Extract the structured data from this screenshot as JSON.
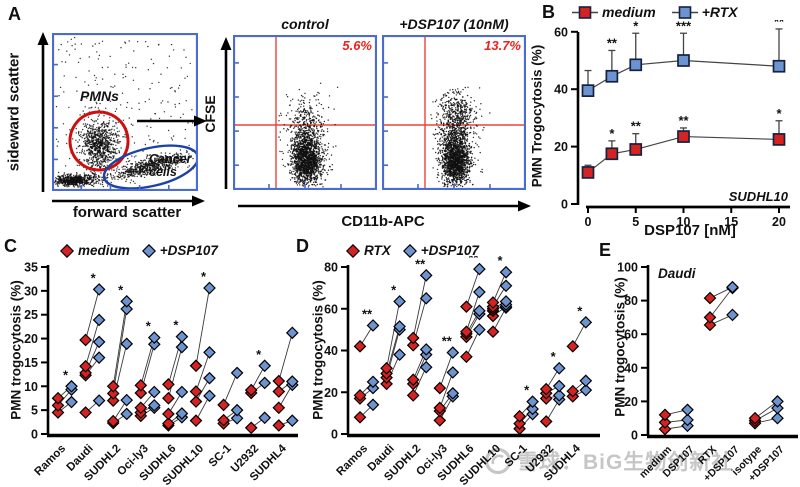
{
  "colors": {
    "red": "#d42322",
    "blue": "#6e93d1",
    "marker_stroke": "#15223f",
    "frame_blue": "#4a6bd0",
    "gate_red": "#cc1010",
    "gate_blue": "#1c41a8",
    "crosshair_red": "#e8453a",
    "flow_pct": "#e8231d",
    "line": "#444444",
    "watermark": "#c6c6c6"
  },
  "panel_a": {
    "label": "A",
    "gating": {
      "xlabel": "forward scatter",
      "ylabel": "sideward scatter",
      "gates": [
        {
          "name": "PMNs",
          "color": "#cc1010"
        },
        {
          "name": "Cancer cells",
          "color": "#1c41a8"
        }
      ]
    },
    "flow": {
      "ylabel": "CFSE",
      "xlabel": "CD11b-APC",
      "plots": [
        {
          "title": "control",
          "value": "5.6%"
        },
        {
          "title": "+DSP107 (10nM)",
          "value": "13.7%"
        }
      ]
    }
  },
  "chart_data": [
    {
      "id": "B",
      "panel_label": "B",
      "type": "line",
      "ylabel": "PMN Trogocytosis (%)",
      "xlabel": "DSP107 [nM]",
      "ylim": [
        0,
        60
      ],
      "yticks": [
        0,
        20,
        40,
        60
      ],
      "xlim": [
        0,
        20
      ],
      "xticks": [
        0,
        5,
        10,
        15,
        20
      ],
      "annotation": "SUDHL10",
      "x": [
        0,
        2.5,
        5,
        10,
        20
      ],
      "series": [
        {
          "name": "medium",
          "color": "red",
          "values": [
            11,
            17.5,
            19,
            23.5,
            22.5
          ],
          "errors_up": [
            2.5,
            4.5,
            5.5,
            3,
            6.5
          ],
          "sig": [
            "",
            "*",
            "**",
            "**",
            "*"
          ]
        },
        {
          "name": "+RTX",
          "color": "blue",
          "values": [
            39.5,
            44.5,
            48.5,
            50,
            48
          ],
          "errors_up": [
            7,
            9,
            11,
            9.5,
            13
          ],
          "sig": [
            "",
            "**",
            "*",
            "***",
            "**"
          ]
        }
      ]
    },
    {
      "id": "C",
      "panel_label": "C",
      "type": "paired-scatter",
      "ylabel": "PMN trogocytosis (%)",
      "ylim": [
        0,
        35
      ],
      "yticks": [
        0,
        5,
        10,
        15,
        20,
        25,
        30,
        35
      ],
      "series_names": [
        "medium",
        "+DSP107"
      ],
      "groups": [
        {
          "category": "Ramos",
          "sig": "*",
          "pairs": [
            [
              4.5,
              6.7
            ],
            [
              6,
              9.3
            ],
            [
              7.5,
              10
            ]
          ]
        },
        {
          "category": "Daudi",
          "sig": "*",
          "pairs": [
            [
              4.5,
              7
            ],
            [
              12.3,
              16
            ],
            [
              12.8,
              19.3
            ],
            [
              14.2,
              23.9
            ],
            [
              19.7,
              30.3
            ]
          ]
        },
        {
          "category": "SUDHL2",
          "sig": "*",
          "pairs": [
            [
              2.3,
              4.2
            ],
            [
              2.7,
              7.1
            ],
            [
              7,
              18.9
            ],
            [
              8.5,
              26.2
            ],
            [
              10,
              27.8
            ]
          ]
        },
        {
          "category": "Oci-ly3",
          "sig": "*",
          "pairs": [
            [
              3.8,
              5.5
            ],
            [
              4.5,
              6
            ],
            [
              5.5,
              8.8
            ],
            [
              8.6,
              18.8
            ],
            [
              10.2,
              20.2
            ]
          ]
        },
        {
          "category": "SUDHL6",
          "sig": "*",
          "pairs": [
            [
              1.8,
              3.5
            ],
            [
              2.2,
              4.3
            ],
            [
              4.2,
              8.8
            ],
            [
              7.5,
              18.2
            ],
            [
              10.4,
              20.4
            ]
          ]
        },
        {
          "category": "SUDHL10",
          "sig": "*",
          "pairs": [
            [
              2.8,
              8
            ],
            [
              6.8,
              11.7
            ],
            [
              8.9,
              17.1
            ],
            [
              14.3,
              30.6
            ]
          ]
        },
        {
          "category": "SC-1",
          "sig": "",
          "pairs": [
            [
              2.2,
              3.3
            ],
            [
              2.9,
              5
            ],
            [
              6.1,
              12.8
            ]
          ]
        },
        {
          "category": "U2932",
          "sig": "*",
          "pairs": [
            [
              1.3,
              3.4
            ],
            [
              8.6,
              10.7
            ],
            [
              9.2,
              14.3
            ]
          ]
        },
        {
          "category": "SUDHL4",
          "sig": "",
          "pairs": [
            [
              1.8,
              2.8
            ],
            [
              5.5,
              10.3
            ],
            [
              8.9,
              11
            ],
            [
              11.1,
              21.2
            ]
          ]
        }
      ]
    },
    {
      "id": "D",
      "panel_label": "D",
      "type": "paired-scatter",
      "ylabel": "PMN trogocytosis (%)",
      "ylim": [
        0,
        80
      ],
      "yticks": [
        0,
        20,
        40,
        60,
        80
      ],
      "series_names": [
        "RTX",
        "+DSP107"
      ],
      "groups": [
        {
          "category": "Ramos",
          "sig": "**",
          "pairs": [
            [
              8,
              14
            ],
            [
              17,
              22
            ],
            [
              18.5,
              25
            ],
            [
              42,
              52
            ]
          ]
        },
        {
          "category": "Daudi",
          "sig": "*",
          "pairs": [
            [
              24,
              38
            ],
            [
              27,
              50
            ],
            [
              29,
              51.5
            ],
            [
              31.5,
              63.5
            ]
          ]
        },
        {
          "category": "SUDHL2",
          "sig": "**",
          "pairs": [
            [
              18.5,
              32
            ],
            [
              24,
              38
            ],
            [
              26,
              40.5
            ],
            [
              42.5,
              65
            ],
            [
              46,
              76
            ]
          ]
        },
        {
          "category": "Oci-ly3",
          "sig": "**",
          "pairs": [
            [
              6.5,
              18
            ],
            [
              11,
              19.5
            ],
            [
              12.5,
              29.5
            ],
            [
              22,
              39
            ]
          ]
        },
        {
          "category": "SUDHL6",
          "sig": "**",
          "pairs": [
            [
              37,
              50
            ],
            [
              46.5,
              57.5
            ],
            [
              48,
              59
            ],
            [
              49,
              68
            ],
            [
              61,
              79
            ]
          ]
        },
        {
          "category": "SUDHL10",
          "sig": "*",
          "pairs": [
            [
              49,
              60.5
            ],
            [
              56.5,
              61
            ],
            [
              59,
              62
            ],
            [
              60,
              63.5
            ],
            [
              61,
              71
            ],
            [
              63,
              77.5
            ]
          ]
        },
        {
          "category": "SC-1",
          "sig": "*",
          "pairs": [
            [
              2.5,
              9.5
            ],
            [
              5,
              12
            ],
            [
              8.5,
              15.5
            ]
          ]
        },
        {
          "category": "U2932",
          "sig": "*",
          "pairs": [
            [
              6,
              16.5
            ],
            [
              17,
              18.5
            ],
            [
              19.5,
              23
            ],
            [
              21.5,
              31.5
            ]
          ]
        },
        {
          "category": "SUDHL4",
          "sig": "*",
          "pairs": [
            [
              18,
              21
            ],
            [
              20.5,
              25.5
            ],
            [
              42,
              53.5
            ]
          ]
        }
      ]
    },
    {
      "id": "E",
      "panel_label": "E",
      "type": "paired-scatter",
      "title": "Daudi",
      "ylabel": "PMN trogocytosis (%)",
      "ylim": [
        0,
        100
      ],
      "yticks": [
        0,
        20,
        40,
        60,
        80,
        100
      ],
      "categories": [
        "medium",
        "DSP107",
        "RTX",
        "+DSP107",
        "isotype",
        "+DSP107"
      ],
      "pair_groups": [
        {
          "cats": [
            0,
            1
          ],
          "pairs": [
            [
              3.5,
              5.5
            ],
            [
              7.5,
              9
            ],
            [
              12,
              15
            ]
          ]
        },
        {
          "cats": [
            2,
            3
          ],
          "pairs": [
            [
              65.5,
              71.5
            ],
            [
              70,
              87.5
            ],
            [
              81.5,
              88
            ]
          ]
        },
        {
          "cats": [
            4,
            5
          ],
          "pairs": [
            [
              7,
              10
            ],
            [
              8.5,
              16
            ],
            [
              10,
              20
            ]
          ]
        }
      ]
    }
  ],
  "watermark": {
    "logo": "xueqiu-logo",
    "text": "雪球：BiG生物创新社"
  }
}
